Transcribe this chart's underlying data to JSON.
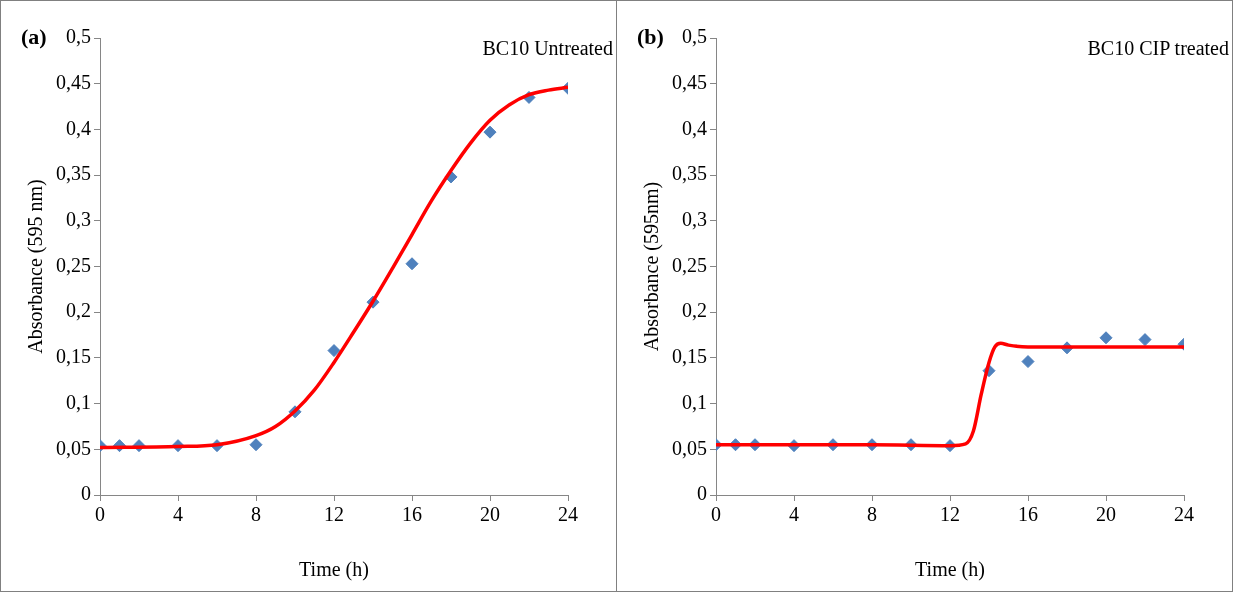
{
  "chart_data": [
    {
      "type": "scatter",
      "title": "BC10 Untreated",
      "annotations": [
        "(a)"
      ],
      "xlabel": "Time (h)",
      "ylabel": "Absorbance (595 nm)",
      "xlim": [
        0,
        24
      ],
      "xticks": [
        0,
        4,
        8,
        12,
        16,
        20,
        24
      ],
      "ylim": [
        0,
        0.5
      ],
      "yticks": [
        0,
        {
          "value": 0.05,
          "label": "0,05"
        },
        {
          "value": 0.1,
          "label": "0,1"
        },
        {
          "value": 0.15,
          "label": "0,15"
        },
        {
          "value": 0.2,
          "label": "0,2"
        },
        {
          "value": 0.25,
          "label": "0,25"
        },
        {
          "value": 0.3,
          "label": "0,3"
        },
        {
          "value": 0.35,
          "label": "0,35"
        },
        {
          "value": 0.4,
          "label": "0,4"
        },
        {
          "value": 0.45,
          "label": "0,45"
        },
        {
          "value": 0.5,
          "label": "0,5"
        }
      ],
      "grid": false,
      "legend": false,
      "marker": "diamond",
      "series": [
        {
          "type": "line",
          "marker": "none",
          "color": "#ff0000",
          "x": [
            0,
            4,
            6,
            8,
            9,
            10,
            11,
            12,
            13,
            14,
            15,
            16,
            17,
            18,
            19,
            20,
            21,
            22,
            23,
            24
          ],
          "values": [
            0.052,
            0.053,
            0.055,
            0.065,
            0.075,
            0.092,
            0.115,
            0.145,
            0.178,
            0.212,
            0.248,
            0.285,
            0.322,
            0.355,
            0.385,
            0.41,
            0.427,
            0.438,
            0.443,
            0.446
          ]
        },
        {
          "color": "#4f81bd",
          "x": [
            0,
            1,
            2,
            4,
            6,
            8,
            10,
            12,
            14,
            16,
            18,
            20,
            22,
            24
          ],
          "values": [
            0.054,
            0.054,
            0.054,
            0.054,
            0.054,
            0.055,
            0.091,
            0.158,
            0.211,
            0.253,
            0.348,
            0.397,
            0.435,
            0.445
          ]
        }
      ]
    },
    {
      "type": "scatter",
      "title": "BC10 CIP treated",
      "annotations": [
        "(b)"
      ],
      "xlabel": "Time (h)",
      "ylabel": "Absorbance (595nm)",
      "xlim": [
        0,
        24
      ],
      "xticks": [
        0,
        4,
        8,
        12,
        16,
        20,
        24
      ],
      "ylim": [
        0,
        0.5
      ],
      "yticks": [
        0,
        {
          "value": 0.05,
          "label": "0,05"
        },
        {
          "value": 0.1,
          "label": "0,1"
        },
        {
          "value": 0.15,
          "label": "0,15"
        },
        {
          "value": 0.2,
          "label": "0,2"
        },
        {
          "value": 0.25,
          "label": "0,25"
        },
        {
          "value": 0.3,
          "label": "0,3"
        },
        {
          "value": 0.35,
          "label": "0,35"
        },
        {
          "value": 0.4,
          "label": "0,4"
        },
        {
          "value": 0.45,
          "label": "0,45"
        },
        {
          "value": 0.5,
          "label": "0,5"
        }
      ],
      "grid": false,
      "legend": false,
      "marker": "diamond",
      "series": [
        {
          "type": "line",
          "marker": "none",
          "color": "#ff0000",
          "x": [
            0,
            4,
            8,
            12,
            12.8,
            13.2,
            13.6,
            14,
            14.3,
            14.6,
            15,
            16,
            20,
            24
          ],
          "values": [
            0.055,
            0.055,
            0.055,
            0.054,
            0.056,
            0.07,
            0.11,
            0.145,
            0.162,
            0.166,
            0.164,
            0.162,
            0.162,
            0.162
          ]
        },
        {
          "color": "#4f81bd",
          "x": [
            0,
            1,
            2,
            4,
            6,
            8,
            10,
            12,
            14,
            16,
            18,
            20,
            22,
            24
          ],
          "values": [
            0.055,
            0.055,
            0.055,
            0.054,
            0.055,
            0.055,
            0.055,
            0.054,
            0.136,
            0.146,
            0.161,
            0.172,
            0.17,
            0.165
          ]
        }
      ]
    }
  ]
}
